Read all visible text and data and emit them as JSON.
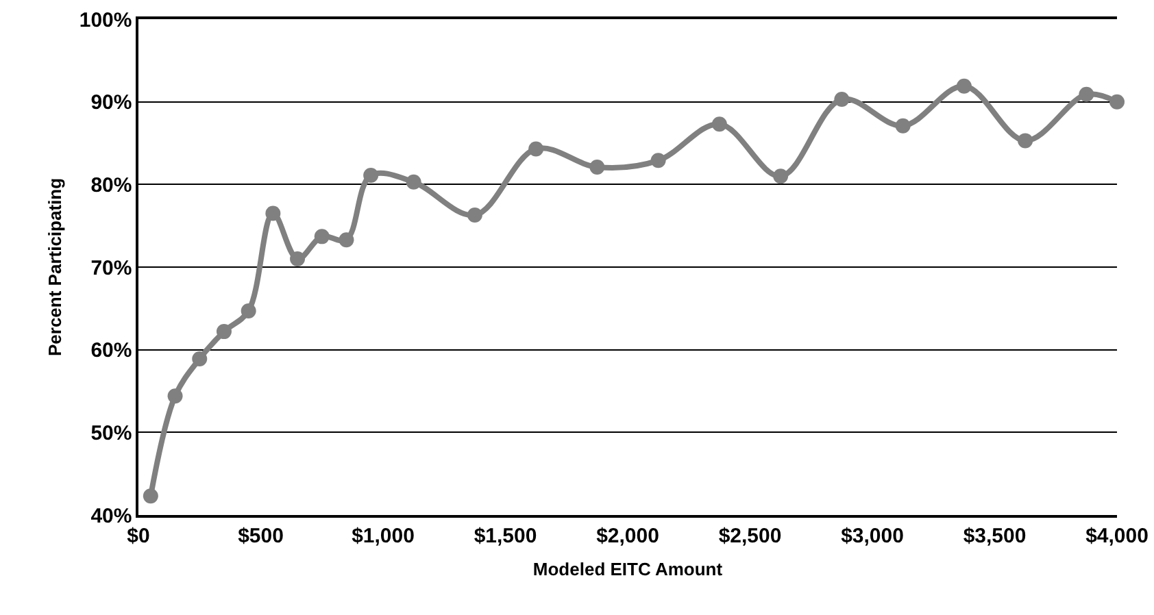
{
  "chart_data": {
    "type": "line",
    "xlabel": "Modeled EITC Amount",
    "ylabel": "Percent Participating",
    "x": [
      50,
      150,
      250,
      350,
      450,
      550,
      650,
      750,
      850,
      950,
      1125,
      1375,
      1625,
      1875,
      2125,
      2375,
      2625,
      2875,
      3125,
      3375,
      3625,
      3875,
      4000
    ],
    "series": [
      {
        "color": "#808080",
        "values": [
          42.3,
          54.4,
          58.9,
          62.2,
          64.7,
          76.5,
          71.0,
          73.7,
          73.3,
          81.1,
          80.3,
          76.3,
          84.3,
          82.1,
          82.9,
          87.3,
          81.0,
          90.3,
          87.1,
          91.9,
          85.3,
          90.9,
          90.0
        ]
      }
    ],
    "xlim": [
      0,
      4000
    ],
    "xticks": [
      {
        "value": 0,
        "label": "$0"
      },
      {
        "value": 500,
        "label": "$500"
      },
      {
        "value": 1000,
        "label": "$1,000"
      },
      {
        "value": 1500,
        "label": "$1,500"
      },
      {
        "value": 2000,
        "label": "$2,000"
      },
      {
        "value": 2500,
        "label": "$2,500"
      },
      {
        "value": 3000,
        "label": "$3,000"
      },
      {
        "value": 3500,
        "label": "$3,500"
      },
      {
        "value": 4000,
        "label": "$4,000"
      }
    ],
    "ylim": [
      40,
      100
    ],
    "yticks": [
      {
        "value": 40,
        "label": "40%"
      },
      {
        "value": 50,
        "label": "50%"
      },
      {
        "value": 60,
        "label": "60%"
      },
      {
        "value": 70,
        "label": "70%"
      },
      {
        "value": 80,
        "label": "80%"
      },
      {
        "value": 90,
        "label": "90%"
      },
      {
        "value": 100,
        "label": "100%"
      }
    ],
    "grid": "y",
    "marker": "circle",
    "line_style": "solid"
  }
}
